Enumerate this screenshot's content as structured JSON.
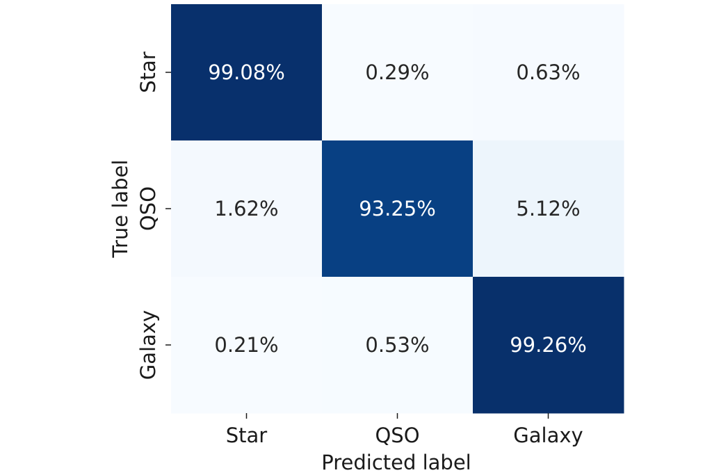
{
  "chart_data": {
    "type": "heatmap",
    "title": "",
    "xlabel": "Predicted label",
    "ylabel": "True label",
    "x_categories": [
      "Star",
      "QSO",
      "Galaxy"
    ],
    "y_categories": [
      "Star",
      "QSO",
      "Galaxy"
    ],
    "values": [
      [
        99.08,
        0.29,
        0.63
      ],
      [
        1.62,
        93.25,
        5.12
      ],
      [
        0.21,
        0.53,
        99.26
      ]
    ],
    "value_labels": [
      [
        "99.08%",
        "0.29%",
        "0.63%"
      ],
      [
        "1.62%",
        "93.25%",
        "5.12%"
      ],
      [
        "0.21%",
        "0.53%",
        "99.26%"
      ]
    ],
    "colormap": "Blues",
    "color_low": "#f7fbff",
    "color_high": "#08306b",
    "text_dark": "#262626",
    "text_light": "#ffffff",
    "colorbar": false,
    "grid": false
  }
}
